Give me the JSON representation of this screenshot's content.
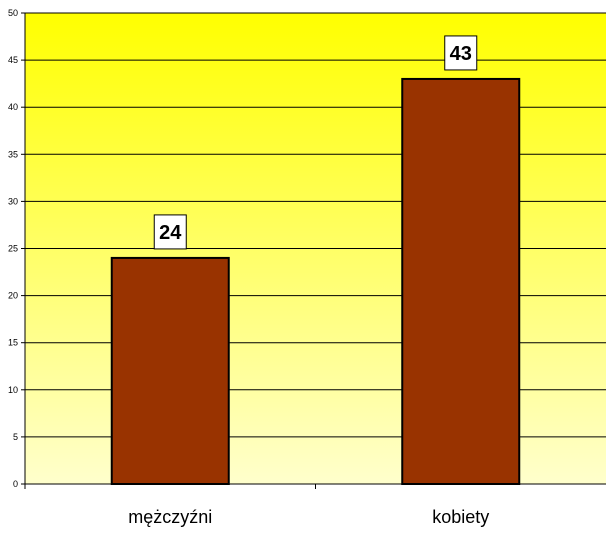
{
  "chart_data": {
    "type": "bar",
    "categories": [
      "mężczyźni",
      "kobiety"
    ],
    "values": [
      24,
      43
    ],
    "data_labels": [
      "24",
      "43"
    ],
    "title": "",
    "xlabel": "",
    "ylabel": "",
    "ylim": [
      0,
      50
    ],
    "yticks": [
      0,
      5,
      10,
      15,
      20,
      25,
      30,
      35,
      40,
      45,
      50
    ],
    "ytick_labels": [
      "0",
      "5",
      "10",
      "15",
      "20",
      "25",
      "30",
      "35",
      "40",
      "45",
      "50"
    ],
    "grid": true,
    "legend": "none",
    "colors": {
      "bar_fill": "#993300",
      "bar_stroke": "#000000",
      "plot_bg_top": "#FFFF00",
      "plot_bg_bottom": "#FFFFCC",
      "gridline": "#000000",
      "label_box_fill": "#FFFFFF"
    }
  }
}
